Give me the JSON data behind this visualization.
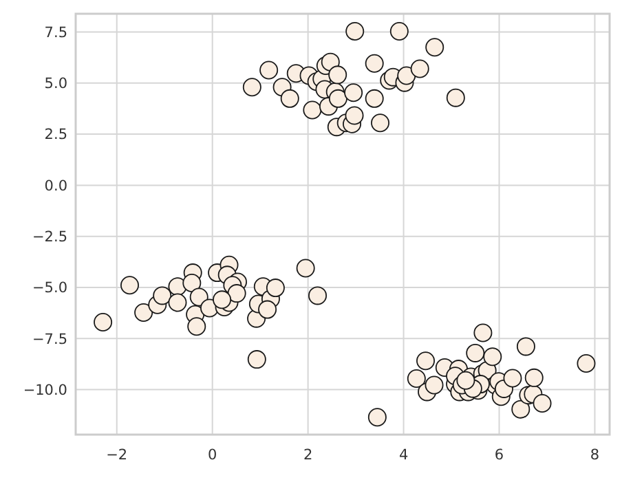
{
  "chart_data": {
    "type": "scatter",
    "marker": "circle",
    "grid": true,
    "xlim": [
      -2.86,
      8.31
    ],
    "ylim": [
      -12.2,
      8.39
    ],
    "xticks": [
      {
        "value": -2,
        "label": "−2"
      },
      0,
      2,
      4,
      6,
      8
    ],
    "yticks": [
      {
        "value": -10,
        "label": "−10.0"
      },
      {
        "value": -7.5,
        "label": "−7.5"
      },
      {
        "value": -5,
        "label": "−5.0"
      },
      {
        "value": -2.5,
        "label": "−2.5"
      },
      {
        "value": 0,
        "label": "0.0"
      },
      {
        "value": 2.5,
        "label": "2.5"
      },
      {
        "value": 5,
        "label": "5.0"
      },
      {
        "value": 7.5,
        "label": "7.5"
      }
    ],
    "series": [
      {
        "color": "#faeee2",
        "x": [
          0.83,
          1.18,
          1.46,
          1.62,
          1.75,
          2.02,
          2.09,
          2.18,
          2.29,
          2.35,
          2.37,
          2.47,
          2.43,
          2.57,
          2.62,
          2.63,
          2.6,
          2.8,
          2.92,
          2.97,
          2.95,
          2.98,
          3.39,
          3.39,
          3.51,
          3.7,
          3.78,
          3.91,
          4.02,
          4.06,
          4.34,
          4.65,
          5.09,
          -2.29,
          -1.73,
          -1.44,
          -1.15,
          -1.05,
          -0.73,
          -0.73,
          -0.41,
          -0.43,
          -0.36,
          -0.33,
          -0.28,
          -0.06,
          0.1,
          0.25,
          0.35,
          0.31,
          0.35,
          0.53,
          0.42,
          0.92,
          0.93,
          0.96,
          1.06,
          1.22,
          1.15,
          1.32,
          1.95,
          2.2,
          0.51,
          0.2,
          3.45,
          4.27,
          4.46,
          4.49,
          4.64,
          4.86,
          5.08,
          5.15,
          5.08,
          5.17,
          5.35,
          5.41,
          5.5,
          5.56,
          5.66,
          5.65,
          5.75,
          5.86,
          5.92,
          5.99,
          6.04,
          6.1,
          6.28,
          6.45,
          6.56,
          6.61,
          6.71,
          6.73,
          6.9,
          7.82,
          5.22,
          5.61,
          5.45,
          5.3
        ],
        "values": [
          4.8,
          5.63,
          4.8,
          4.24,
          5.47,
          5.36,
          3.68,
          5.07,
          5.2,
          4.69,
          5.85,
          6.03,
          3.86,
          4.57,
          5.4,
          4.24,
          2.85,
          3.05,
          3,
          3.41,
          4.53,
          7.53,
          5.96,
          4.24,
          3.05,
          5.13,
          5.29,
          7.53,
          5.02,
          5.36,
          5.7,
          6.75,
          4.28,
          -6.7,
          -4.89,
          -6.23,
          -5.85,
          -5.4,
          -4.96,
          -5.74,
          -4.28,
          -4.78,
          -6.32,
          -6.91,
          -5.47,
          -6.01,
          -4.28,
          -5.96,
          -3.9,
          -4.39,
          -5.74,
          -4.73,
          -4.89,
          -6.52,
          -8.52,
          -5.81,
          -4.96,
          -5.56,
          -6.08,
          -5.02,
          -4.06,
          -5.4,
          -5.29,
          -5.6,
          -11.35,
          -9.46,
          -8.59,
          -10.11,
          -9.78,
          -8.92,
          -9.73,
          -8.99,
          -9.33,
          -10.11,
          -10.11,
          -9.37,
          -8.21,
          -10.04,
          -7.22,
          -9.22,
          -9.06,
          -8.39,
          -9.78,
          -9.6,
          -10.34,
          -9.96,
          -9.44,
          -10.96,
          -7.89,
          -10.27,
          -10.22,
          -9.42,
          -10.67,
          -8.72,
          -9.78,
          -9.73,
          -9.95,
          -9.55
        ]
      }
    ]
  }
}
